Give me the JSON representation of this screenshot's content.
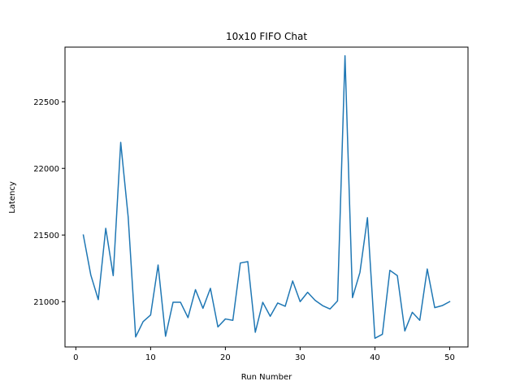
{
  "chart_data": {
    "type": "line",
    "title": "10x10 FIFO Chat",
    "xlabel": "Run Number",
    "ylabel": "Latency",
    "xlim": [
      -1.45,
      52.45
    ],
    "ylim": [
      20660,
      22910
    ],
    "xticks": [
      0,
      10,
      20,
      30,
      40,
      50
    ],
    "yticks": [
      21000,
      21500,
      22000,
      22500
    ],
    "grid": false,
    "legend": "none",
    "series": [
      {
        "color": "#1f77b4",
        "x": [
          1,
          2,
          3,
          4,
          5,
          6,
          7,
          8,
          9,
          10,
          11,
          12,
          13,
          14,
          15,
          16,
          17,
          18,
          19,
          20,
          21,
          22,
          23,
          24,
          25,
          26,
          27,
          28,
          29,
          30,
          31,
          32,
          33,
          34,
          35,
          36,
          37,
          38,
          39,
          40,
          41,
          42,
          43,
          44,
          45,
          46,
          47,
          48,
          49,
          50
        ],
        "y": [
          21500,
          21200,
          21015,
          21550,
          21195,
          22195,
          21635,
          20735,
          20850,
          20900,
          21275,
          20740,
          20995,
          20995,
          20880,
          21090,
          20950,
          21100,
          20810,
          20870,
          20860,
          21290,
          21300,
          20770,
          20995,
          20890,
          20990,
          20965,
          21155,
          21000,
          21070,
          21010,
          20970,
          20945,
          21005,
          22845,
          21030,
          21220,
          21630,
          20725,
          20755,
          21235,
          21195,
          20780,
          20920,
          20860,
          21245,
          20955,
          20970,
          21000
        ]
      }
    ]
  }
}
